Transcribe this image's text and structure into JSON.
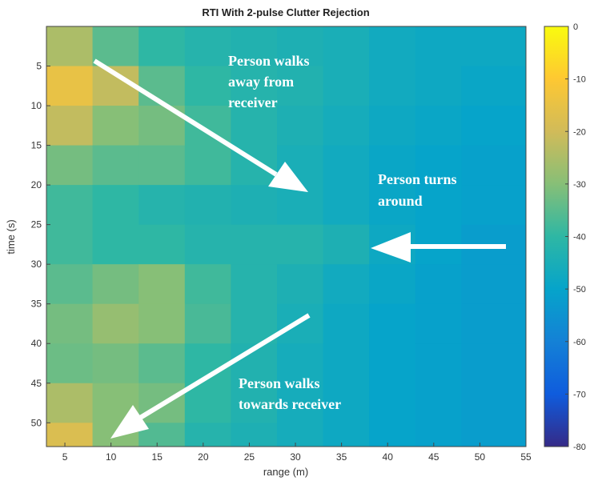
{
  "chart_data": {
    "type": "heatmap",
    "title": "RTI With 2-pulse Clutter Rejection",
    "x_label": "range (m)",
    "y_label": "time (s)",
    "x_bins": [
      3,
      8,
      13,
      18,
      23,
      28,
      33,
      38,
      43,
      48,
      55
    ],
    "y_bins": [
      0,
      5,
      10,
      15,
      20,
      25,
      30,
      35,
      40,
      45,
      50,
      53
    ],
    "z": [
      [
        -25,
        -35,
        -40,
        -42,
        -43,
        -44,
        -45,
        -47,
        -48,
        -48
      ],
      [
        -15,
        -22,
        -35,
        -40,
        -42,
        -43,
        -45,
        -47,
        -48,
        -49
      ],
      [
        -22,
        -30,
        -32,
        -38,
        -42,
        -44,
        -46,
        -48,
        -49,
        -50
      ],
      [
        -32,
        -35,
        -35,
        -38,
        -42,
        -45,
        -47,
        -49,
        -50,
        -51
      ],
      [
        -38,
        -40,
        -42,
        -43,
        -44,
        -45,
        -47,
        -49,
        -50,
        -51
      ],
      [
        -38,
        -40,
        -40,
        -42,
        -42,
        -42,
        -44,
        -48,
        -50,
        -52
      ],
      [
        -35,
        -32,
        -30,
        -38,
        -42,
        -44,
        -47,
        -49,
        -51,
        -52
      ],
      [
        -32,
        -28,
        -30,
        -37,
        -42,
        -45,
        -48,
        -50,
        -51,
        -52
      ],
      [
        -33,
        -32,
        -35,
        -40,
        -43,
        -46,
        -48,
        -50,
        -51,
        -52
      ],
      [
        -25,
        -30,
        -32,
        -40,
        -43,
        -46,
        -48,
        -50,
        -51,
        -52
      ],
      [
        -18,
        -30,
        -36,
        -42,
        -44,
        -46,
        -48,
        -50,
        -51,
        -52
      ]
    ],
    "xlim": [
      3,
      55
    ],
    "xticks": [
      5,
      10,
      15,
      20,
      25,
      30,
      35,
      40,
      45,
      50,
      55
    ],
    "ylim": [
      0,
      53
    ],
    "yticks": [
      5,
      10,
      15,
      20,
      25,
      30,
      35,
      40,
      45,
      50
    ],
    "y_reversed": true,
    "clim": [
      -80,
      0
    ],
    "cticks": [
      0,
      -10,
      -20,
      -30,
      -40,
      -50,
      -60,
      -70,
      -80
    ],
    "colormap": [
      "#352a87",
      "#0f5cdd",
      "#1481d6",
      "#06a4ca",
      "#2eb7a4",
      "#87bf77",
      "#d1bb59",
      "#fec832",
      "#f9fb0e"
    ],
    "annotations": [
      [
        "Person walks",
        "away from",
        "receiver"
      ],
      [
        "Person turns",
        "around"
      ],
      [
        "Person walks",
        "towards receiver"
      ]
    ]
  }
}
